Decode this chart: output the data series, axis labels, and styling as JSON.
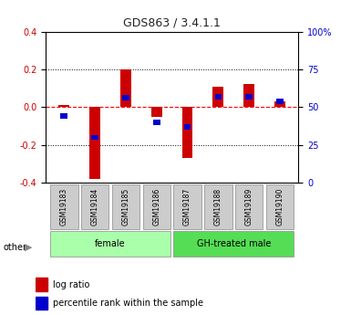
{
  "title": "GDS863 / 3.4.1.1",
  "samples": [
    "GSM19183",
    "GSM19184",
    "GSM19185",
    "GSM19186",
    "GSM19187",
    "GSM19188",
    "GSM19189",
    "GSM19190"
  ],
  "log_ratio": [
    0.01,
    -0.38,
    0.2,
    -0.05,
    -0.27,
    0.11,
    0.12,
    0.03
  ],
  "percentile_rank": [
    44,
    30,
    56,
    40,
    37,
    57,
    57,
    54
  ],
  "groups": [
    {
      "label": "female",
      "start": 0,
      "end": 4,
      "color": "#aaffaa"
    },
    {
      "label": "GH-treated male",
      "start": 4,
      "end": 8,
      "color": "#55dd55"
    }
  ],
  "ylim_left": [
    -0.4,
    0.4
  ],
  "ylim_right": [
    0,
    100
  ],
  "yticks_left": [
    -0.4,
    -0.2,
    0.0,
    0.2,
    0.4
  ],
  "yticks_right": [
    0,
    25,
    50,
    75,
    100
  ],
  "hline_color": "#ff0000",
  "grid_color": "#000000",
  "bar_width": 0.35,
  "red_color": "#cc0000",
  "blue_color": "#0000cc",
  "bg_color": "#ffffff",
  "plot_bg": "#ffffff",
  "legend_log_ratio": "log ratio",
  "legend_percentile": "percentile rank within the sample"
}
